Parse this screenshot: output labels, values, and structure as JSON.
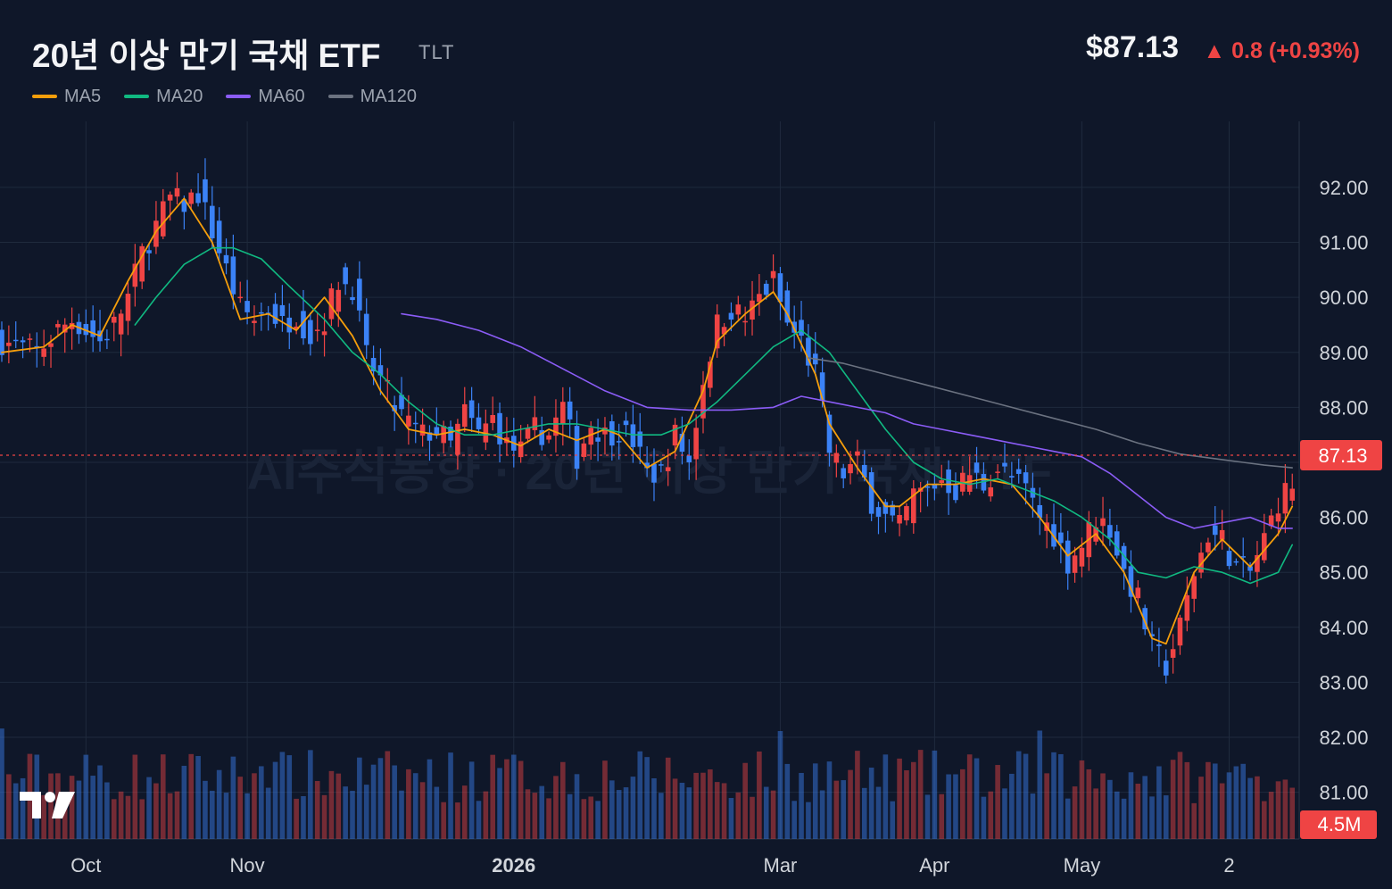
{
  "header": {
    "title": "20년 이상 만기 국채 ETF",
    "ticker": "TLT",
    "price": "$87.13",
    "change": "▲ 0.8 (+0.93%)"
  },
  "watermark": "AI주식동향 · 20년 이상 만기 국채 ETF",
  "price_tag": "87.13",
  "volume_tag": "4.5M",
  "colors": {
    "background": "#0f1729",
    "up": "#ef4444",
    "down": "#3b82f6",
    "ma5": "#f59e0b",
    "ma20": "#10b981",
    "ma60": "#8b5cf6",
    "ma120": "#6b7280",
    "grid": "#1f2a3d"
  },
  "legend": [
    {
      "label": "MA5",
      "color": "#f59e0b"
    },
    {
      "label": "MA20",
      "color": "#10b981"
    },
    {
      "label": "MA60",
      "color": "#8b5cf6"
    },
    {
      "label": "MA120",
      "color": "#6b7280"
    }
  ],
  "chart_data": {
    "type": "candlestick",
    "y_ticks": [
      "81.00",
      "82.00",
      "83.00",
      "84.00",
      "85.00",
      "86.00",
      "87.00",
      "88.00",
      "89.00",
      "90.00",
      "91.00",
      "92.00"
    ],
    "y_ticks_text": [
      "81.00",
      "82.00",
      "83.00",
      "84.00",
      "85.00",
      "86.00",
      "88.00",
      "89.00",
      "90.00",
      "91.00",
      "92.00"
    ],
    "ylim": [
      80.15,
      93.2
    ],
    "last_price": 87.13,
    "x_ticks": [
      {
        "label": "Oct",
        "index": 12,
        "bold": false
      },
      {
        "label": "Nov",
        "index": 35,
        "bold": false
      },
      {
        "label": "2026",
        "index": 73,
        "bold": true
      },
      {
        "label": "Mar",
        "index": 111,
        "bold": false
      },
      {
        "label": "Apr",
        "index": 133,
        "bold": false
      },
      {
        "label": "May",
        "index": 154,
        "bold": false
      },
      {
        "label": "2",
        "index": 175,
        "bold": false
      }
    ],
    "anchors": [
      [
        0,
        89.2
      ],
      [
        5,
        89.0
      ],
      [
        8,
        89.4
      ],
      [
        10,
        89.6
      ],
      [
        12,
        89.4
      ],
      [
        14,
        89.2
      ],
      [
        16,
        89.5
      ],
      [
        18,
        90.0
      ],
      [
        20,
        90.8
      ],
      [
        22,
        91.3
      ],
      [
        24,
        91.8
      ],
      [
        26,
        91.7
      ],
      [
        28,
        91.9
      ],
      [
        30,
        91.2
      ],
      [
        32,
        90.5
      ],
      [
        34,
        89.8
      ],
      [
        36,
        89.6
      ],
      [
        38,
        89.8
      ],
      [
        40,
        89.5
      ],
      [
        42,
        89.7
      ],
      [
        44,
        89.3
      ],
      [
        46,
        89.6
      ],
      [
        48,
        90.3
      ],
      [
        50,
        90.2
      ],
      [
        52,
        88.9
      ],
      [
        54,
        88.5
      ],
      [
        56,
        88.0
      ],
      [
        58,
        87.7
      ],
      [
        60,
        87.5
      ],
      [
        62,
        87.6
      ],
      [
        64,
        87.3
      ],
      [
        66,
        87.9
      ],
      [
        68,
        87.5
      ],
      [
        70,
        87.8
      ],
      [
        72,
        87.3
      ],
      [
        74,
        87.2
      ],
      [
        76,
        87.6
      ],
      [
        78,
        87.5
      ],
      [
        80,
        88.0
      ],
      [
        82,
        87.1
      ],
      [
        84,
        87.7
      ],
      [
        86,
        87.5
      ],
      [
        88,
        87.6
      ],
      [
        90,
        87.4
      ],
      [
        92,
        86.8
      ],
      [
        94,
        86.8
      ],
      [
        96,
        87.5
      ],
      [
        98,
        87.0
      ],
      [
        100,
        88.5
      ],
      [
        102,
        89.5
      ],
      [
        104,
        89.8
      ],
      [
        106,
        89.6
      ],
      [
        108,
        90.0
      ],
      [
        110,
        90.3
      ],
      [
        112,
        89.5
      ],
      [
        114,
        89.2
      ],
      [
        116,
        88.6
      ],
      [
        118,
        87.2
      ],
      [
        120,
        86.8
      ],
      [
        122,
        87.0
      ],
      [
        124,
        86.3
      ],
      [
        126,
        86.0
      ],
      [
        128,
        85.8
      ],
      [
        130,
        86.4
      ],
      [
        132,
        86.5
      ],
      [
        134,
        86.7
      ],
      [
        136,
        86.5
      ],
      [
        138,
        86.8
      ],
      [
        140,
        86.6
      ],
      [
        142,
        86.9
      ],
      [
        144,
        86.7
      ],
      [
        146,
        86.5
      ],
      [
        148,
        86.0
      ],
      [
        150,
        85.7
      ],
      [
        152,
        85.2
      ],
      [
        154,
        85.5
      ],
      [
        156,
        86.0
      ],
      [
        158,
        85.8
      ],
      [
        160,
        85.0
      ],
      [
        162,
        84.5
      ],
      [
        164,
        83.6
      ],
      [
        166,
        83.3
      ],
      [
        168,
        84.0
      ],
      [
        170,
        85.0
      ],
      [
        172,
        85.7
      ],
      [
        174,
        85.6
      ],
      [
        176,
        85.1
      ],
      [
        178,
        85.0
      ],
      [
        180,
        85.6
      ],
      [
        182,
        86.3
      ],
      [
        184,
        86.6
      ]
    ],
    "ma_anchors": {
      "ma5": [
        [
          0,
          89.0
        ],
        [
          6,
          89.1
        ],
        [
          10,
          89.5
        ],
        [
          14,
          89.3
        ],
        [
          18,
          90.3
        ],
        [
          22,
          91.2
        ],
        [
          26,
          91.8
        ],
        [
          30,
          91.0
        ],
        [
          34,
          89.6
        ],
        [
          38,
          89.7
        ],
        [
          42,
          89.4
        ],
        [
          46,
          90.0
        ],
        [
          50,
          89.3
        ],
        [
          54,
          88.3
        ],
        [
          58,
          87.6
        ],
        [
          62,
          87.5
        ],
        [
          66,
          87.6
        ],
        [
          70,
          87.5
        ],
        [
          74,
          87.3
        ],
        [
          78,
          87.6
        ],
        [
          82,
          87.4
        ],
        [
          86,
          87.6
        ],
        [
          88,
          87.5
        ],
        [
          92,
          86.9
        ],
        [
          96,
          87.2
        ],
        [
          100,
          88.3
        ],
        [
          102,
          89.2
        ],
        [
          106,
          89.7
        ],
        [
          110,
          90.1
        ],
        [
          112,
          89.7
        ],
        [
          116,
          88.6
        ],
        [
          118,
          87.7
        ],
        [
          122,
          86.9
        ],
        [
          126,
          86.2
        ],
        [
          128,
          86.2
        ],
        [
          132,
          86.6
        ],
        [
          136,
          86.6
        ],
        [
          140,
          86.7
        ],
        [
          144,
          86.6
        ],
        [
          148,
          86.0
        ],
        [
          152,
          85.3
        ],
        [
          156,
          85.7
        ],
        [
          160,
          85.0
        ],
        [
          164,
          83.8
        ],
        [
          166,
          83.7
        ],
        [
          170,
          85.0
        ],
        [
          174,
          85.6
        ],
        [
          178,
          85.1
        ],
        [
          182,
          85.7
        ],
        [
          184,
          86.2
        ]
      ],
      "ma20": [
        [
          19,
          89.5
        ],
        [
          22,
          90.0
        ],
        [
          26,
          90.6
        ],
        [
          30,
          90.9
        ],
        [
          33,
          90.9
        ],
        [
          37,
          90.7
        ],
        [
          41,
          90.2
        ],
        [
          46,
          89.6
        ],
        [
          50,
          89.0
        ],
        [
          54,
          88.6
        ],
        [
          58,
          88.1
        ],
        [
          62,
          87.7
        ],
        [
          66,
          87.5
        ],
        [
          70,
          87.5
        ],
        [
          74,
          87.6
        ],
        [
          78,
          87.7
        ],
        [
          82,
          87.7
        ],
        [
          86,
          87.6
        ],
        [
          90,
          87.5
        ],
        [
          94,
          87.5
        ],
        [
          98,
          87.7
        ],
        [
          102,
          88.1
        ],
        [
          106,
          88.6
        ],
        [
          110,
          89.1
        ],
        [
          114,
          89.4
        ],
        [
          118,
          89.0
        ],
        [
          122,
          88.3
        ],
        [
          126,
          87.6
        ],
        [
          130,
          87.0
        ],
        [
          134,
          86.7
        ],
        [
          138,
          86.6
        ],
        [
          142,
          86.7
        ],
        [
          146,
          86.5
        ],
        [
          150,
          86.3
        ],
        [
          154,
          86.0
        ],
        [
          158,
          85.6
        ],
        [
          162,
          85.0
        ],
        [
          166,
          84.9
        ],
        [
          170,
          85.1
        ],
        [
          174,
          85.0
        ],
        [
          178,
          84.8
        ],
        [
          182,
          85.0
        ],
        [
          184,
          85.5
        ]
      ],
      "ma60": [
        [
          57,
          89.7
        ],
        [
          62,
          89.6
        ],
        [
          68,
          89.4
        ],
        [
          74,
          89.1
        ],
        [
          80,
          88.7
        ],
        [
          86,
          88.3
        ],
        [
          92,
          88.0
        ],
        [
          98,
          87.95
        ],
        [
          104,
          87.95
        ],
        [
          110,
          88.0
        ],
        [
          114,
          88.2
        ],
        [
          118,
          88.1
        ],
        [
          122,
          88.0
        ],
        [
          126,
          87.9
        ],
        [
          130,
          87.7
        ],
        [
          134,
          87.6
        ],
        [
          138,
          87.5
        ],
        [
          142,
          87.4
        ],
        [
          146,
          87.3
        ],
        [
          150,
          87.2
        ],
        [
          154,
          87.1
        ],
        [
          158,
          86.8
        ],
        [
          162,
          86.4
        ],
        [
          166,
          86.0
        ],
        [
          170,
          85.8
        ],
        [
          174,
          85.9
        ],
        [
          178,
          86.0
        ],
        [
          182,
          85.8
        ],
        [
          184,
          85.8
        ]
      ],
      "ma120": [
        [
          115,
          88.9
        ],
        [
          120,
          88.8
        ],
        [
          126,
          88.6
        ],
        [
          132,
          88.4
        ],
        [
          138,
          88.2
        ],
        [
          144,
          88.0
        ],
        [
          150,
          87.8
        ],
        [
          156,
          87.6
        ],
        [
          162,
          87.35
        ],
        [
          168,
          87.15
        ],
        [
          174,
          87.05
        ],
        [
          180,
          86.95
        ],
        [
          184,
          86.9
        ]
      ]
    }
  }
}
